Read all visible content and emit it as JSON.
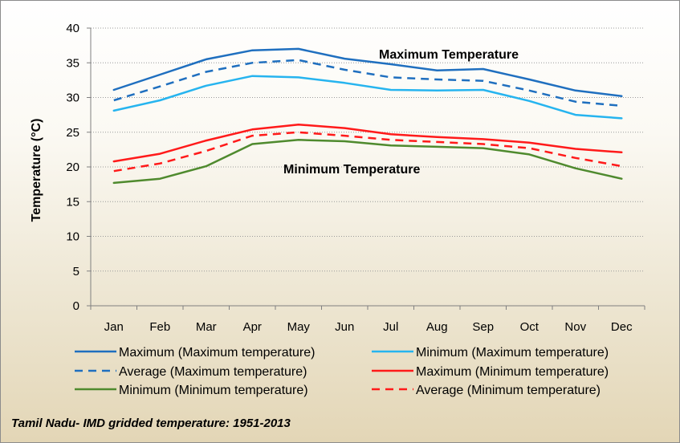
{
  "chart_data": {
    "type": "line",
    "ylabel": "Temperature (°C)",
    "ylim": [
      0,
      40
    ],
    "yticks": [
      0,
      5,
      10,
      15,
      20,
      25,
      30,
      35,
      40
    ],
    "grid": "horizontal dotted",
    "categories": [
      "Jan",
      "Feb",
      "Mar",
      "Apr",
      "May",
      "Jun",
      "Jul",
      "Aug",
      "Sep",
      "Oct",
      "Nov",
      "Dec"
    ],
    "series": [
      {
        "name": "Maximum (Maximum temperature)",
        "color": "#1f6fbf",
        "dash": false,
        "values": [
          31.1,
          33.3,
          35.5,
          36.8,
          37.0,
          35.6,
          34.8,
          33.9,
          34.1,
          32.6,
          31.0,
          30.2
        ]
      },
      {
        "name": "Average (Maximum temperature)",
        "color": "#1f6fbf",
        "dash": true,
        "values": [
          29.6,
          31.6,
          33.7,
          35.0,
          35.4,
          34.0,
          32.9,
          32.6,
          32.4,
          31.0,
          29.4,
          28.8
        ]
      },
      {
        "name": "Minimum (Maximum temperature)",
        "color": "#26b4ef",
        "dash": false,
        "values": [
          28.1,
          29.6,
          31.7,
          33.1,
          32.9,
          32.1,
          31.1,
          31.0,
          31.1,
          29.5,
          27.5,
          27.0
        ]
      },
      {
        "name": "Maximum (Minimum temperature)",
        "color": "#ff1a1a",
        "dash": false,
        "values": [
          20.8,
          21.9,
          23.8,
          25.4,
          26.1,
          25.6,
          24.7,
          24.3,
          24.0,
          23.5,
          22.6,
          22.1
        ]
      },
      {
        "name": "Average (Minimum temperature)",
        "color": "#ff1a1a",
        "dash": true,
        "values": [
          19.4,
          20.5,
          22.3,
          24.5,
          25.0,
          24.5,
          23.9,
          23.6,
          23.3,
          22.7,
          21.3,
          20.1
        ]
      },
      {
        "name": "Minimum (Minimum temperature)",
        "color": "#4f8a2e",
        "dash": false,
        "values": [
          17.7,
          18.3,
          20.1,
          23.3,
          23.9,
          23.7,
          23.1,
          22.9,
          22.7,
          21.8,
          19.8,
          18.3
        ]
      }
    ],
    "annotations": [
      "Maximum Temperature",
      "Minimum Temperature"
    ],
    "legend_placement": "bottom",
    "legend_order": [
      "Maximum (Maximum temperature)",
      "Minimum (Maximum temperature)",
      "Average (Maximum temperature)",
      "Maximum (Minimum temperature)",
      "Minimum (Minimum temperature)",
      "Average (Minimum temperature)"
    ]
  },
  "footer": "Tamil Nadu- IMD gridded temperature: 1951-2013"
}
